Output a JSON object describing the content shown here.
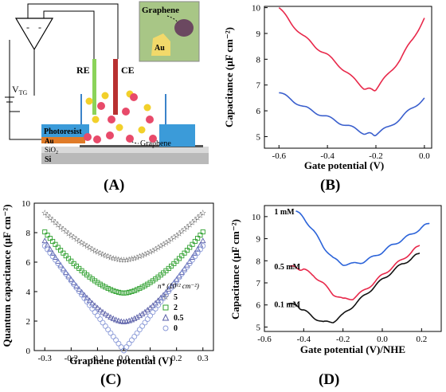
{
  "panel_labels": {
    "A": "(A)",
    "B": "(B)",
    "C": "(C)",
    "D": "(D)"
  },
  "schematic": {
    "graphene_inset": "Graphene",
    "au_inset": "Au",
    "re": "RE",
    "ce": "CE",
    "vtg": "V",
    "vtg_sub": "TG",
    "photoresist": "Photoresist",
    "au": "Au",
    "sio2": "SiO",
    "sio2_sub": "2",
    "si": "Si",
    "graphene": "Graphene",
    "amp_minus1": "-",
    "amp_minus2": "-",
    "ion_neg": "-",
    "ion_pos": "+"
  },
  "chart_data": [
    {
      "id": "B",
      "type": "line",
      "xlabel": "Gate potential (V)",
      "ylabel": "Capacitance (μF cm⁻²)",
      "xlim": [
        -0.66,
        0.03
      ],
      "ylim": [
        4.55,
        10.05
      ],
      "xticks": [
        "-0.6",
        "-0.4",
        "-0.2",
        "0.0"
      ],
      "xtick_values": [
        -0.6,
        -0.4,
        -0.2,
        0.0
      ],
      "yticks": [
        "5",
        "6",
        "7",
        "8",
        "9",
        "10"
      ],
      "ytick_values": [
        5,
        6,
        7,
        8,
        9,
        10
      ],
      "colors": [
        "#e8284a",
        "#3a5fcd"
      ],
      "series": [
        {
          "x": [
            -0.6,
            -0.55,
            -0.5,
            -0.45,
            -0.4,
            -0.35,
            -0.3,
            -0.25,
            -0.22,
            -0.2,
            -0.15,
            -0.1,
            -0.05,
            0.0
          ],
          "values": [
            10.0,
            9.4,
            8.9,
            8.5,
            8.15,
            7.75,
            7.3,
            6.9,
            6.8,
            6.85,
            7.4,
            8.0,
            8.75,
            9.6
          ]
        },
        {
          "x": [
            -0.6,
            -0.55,
            -0.5,
            -0.45,
            -0.4,
            -0.35,
            -0.3,
            -0.25,
            -0.22,
            -0.2,
            -0.15,
            -0.1,
            -0.05,
            0.0
          ],
          "values": [
            6.7,
            6.45,
            6.15,
            5.95,
            5.75,
            5.55,
            5.35,
            5.15,
            5.08,
            5.1,
            5.35,
            5.7,
            6.1,
            6.5
          ]
        }
      ]
    },
    {
      "id": "C",
      "type": "scatter",
      "xlabel": "Graphene potential (V)",
      "ylabel": "Quantum capacitance (μF cm⁻²)",
      "xlim": [
        -0.34,
        0.34
      ],
      "ylim": [
        0,
        10
      ],
      "xticks": [
        "-0.3",
        "-0.2",
        "-0.1",
        "0.0",
        "0.1",
        "0.2",
        "0.3"
      ],
      "xtick_values": [
        -0.3,
        -0.2,
        -0.1,
        0.0,
        0.1,
        0.2,
        0.3
      ],
      "yticks": [
        "0",
        "2",
        "4",
        "6",
        "8",
        "10"
      ],
      "ytick_values": [
        0,
        2,
        4,
        6,
        8,
        10
      ],
      "legend_title": "n* (10¹² cm⁻²)",
      "legend_location": "lower-right",
      "series": [
        {
          "name": "5",
          "marker": "star",
          "color": "#333333",
          "min": 6.15
        },
        {
          "name": "2",
          "marker": "square",
          "color": "#2fa02f",
          "min": 3.9
        },
        {
          "name": "0.5",
          "marker": "triangle",
          "color": "#5a5fa8",
          "min": 1.95
        },
        {
          "name": "0",
          "marker": "circle",
          "color": "#8a9ad8",
          "min": 0.0
        }
      ],
      "ends_at_0_3": [
        9.35,
        8.05,
        7.45,
        7.1
      ]
    },
    {
      "id": "D",
      "type": "line",
      "xlabel": "Gate potential (V)/NHE",
      "ylabel": "Capacitance (μF cm⁻²)",
      "xlim": [
        -0.6,
        0.3
      ],
      "ylim": [
        4.8,
        10.5
      ],
      "xticks": [
        "-0.6",
        "-0.4",
        "-0.2",
        "0.0",
        "0.2"
      ],
      "xtick_values": [
        -0.6,
        -0.4,
        -0.2,
        0.0,
        0.2
      ],
      "yticks": [
        "5",
        "6",
        "7",
        "8",
        "9",
        "10"
      ],
      "ytick_values": [
        5,
        6,
        7,
        8,
        9,
        10
      ],
      "series": [
        {
          "name": "1 mM",
          "color": "#2b63d9",
          "x": [
            -0.44,
            -0.4,
            -0.35,
            -0.3,
            -0.25,
            -0.2,
            -0.15,
            -0.1,
            -0.05,
            0.0,
            0.05,
            0.1,
            0.15,
            0.2,
            0.24
          ],
          "values": [
            10.25,
            9.95,
            9.35,
            8.65,
            8.1,
            7.85,
            7.85,
            7.95,
            8.15,
            8.4,
            8.7,
            8.95,
            9.2,
            9.5,
            9.7
          ]
        },
        {
          "name": "0.5 mM",
          "color": "#e8284a",
          "x": [
            -0.47,
            -0.43,
            -0.4,
            -0.35,
            -0.3,
            -0.25,
            -0.2,
            -0.15,
            -0.1,
            -0.05,
            0.0,
            0.05,
            0.1,
            0.15,
            0.19
          ],
          "values": [
            7.75,
            7.65,
            7.6,
            7.35,
            6.95,
            6.5,
            6.25,
            6.3,
            6.6,
            6.95,
            7.35,
            7.7,
            8.05,
            8.4,
            8.7
          ]
        },
        {
          "name": "0.1 mM",
          "color": "#111111",
          "x": [
            -0.48,
            -0.43,
            -0.4,
            -0.35,
            -0.3,
            -0.25,
            -0.2,
            -0.15,
            -0.1,
            -0.05,
            0.0,
            0.05,
            0.1,
            0.15,
            0.19
          ],
          "values": [
            6.05,
            5.95,
            5.75,
            5.45,
            5.2,
            5.25,
            5.55,
            5.95,
            6.35,
            6.75,
            7.15,
            7.5,
            7.85,
            8.1,
            8.35
          ]
        }
      ]
    }
  ]
}
